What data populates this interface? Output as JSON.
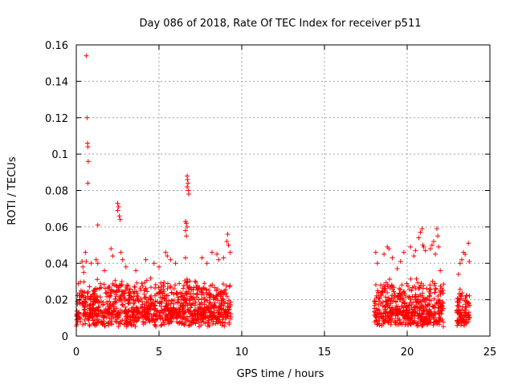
{
  "chart_data": {
    "type": "scatter",
    "title": "Day 086 of 2018, Rate Of TEC Index for receiver p511",
    "xlabel": "GPS time / hours",
    "ylabel": "ROTI / TECUs",
    "xlim": [
      0,
      25
    ],
    "ylim": [
      0,
      0.16
    ],
    "x_ticks": [
      0,
      5,
      10,
      15,
      20,
      25
    ],
    "x_tick_labels": [
      "0",
      "5",
      "10",
      "15",
      "20",
      "25"
    ],
    "y_ticks": [
      0,
      0.02,
      0.04,
      0.06,
      0.08,
      0.1,
      0.12,
      0.14,
      0.16
    ],
    "y_tick_labels": [
      "0",
      "0.02",
      "0.04",
      "0.06",
      "0.08",
      "0.1",
      "0.12",
      "0.14",
      "0.16"
    ],
    "grid": true,
    "marker": "+",
    "color": "#ff0000",
    "series": [
      {
        "name": "ROTI",
        "segments": [
          {
            "x_range": [
              0.0,
              9.35
            ],
            "typical_range": [
              0.005,
              0.03
            ],
            "notes": "dense data block"
          },
          {
            "x_range": [
              18.0,
              22.2
            ],
            "typical_range": [
              0.005,
              0.03
            ],
            "notes": "dense data block"
          },
          {
            "x_range": [
              23.0,
              23.8
            ],
            "typical_range": [
              0.005,
              0.025
            ],
            "notes": "dense data block"
          }
        ],
        "points": [
          [
            0.6,
            0.154
          ],
          [
            0.65,
            0.12
          ],
          [
            0.68,
            0.106
          ],
          [
            0.7,
            0.104
          ],
          [
            0.72,
            0.096
          ],
          [
            0.7,
            0.084
          ],
          [
            1.3,
            0.061
          ],
          [
            0.35,
            0.041
          ],
          [
            0.4,
            0.038
          ],
          [
            0.45,
            0.035
          ],
          [
            0.55,
            0.046
          ],
          [
            0.6,
            0.041
          ],
          [
            0.9,
            0.04
          ],
          [
            1.2,
            0.042
          ],
          [
            1.3,
            0.04
          ],
          [
            1.7,
            0.036
          ],
          [
            2.1,
            0.048
          ],
          [
            2.2,
            0.044
          ],
          [
            2.5,
            0.069
          ],
          [
            2.55,
            0.071
          ],
          [
            2.6,
            0.066
          ],
          [
            2.65,
            0.064
          ],
          [
            2.5,
            0.073
          ],
          [
            2.7,
            0.046
          ],
          [
            2.8,
            0.042
          ],
          [
            3.0,
            0.038
          ],
          [
            3.6,
            0.036
          ],
          [
            4.2,
            0.042
          ],
          [
            4.7,
            0.04
          ],
          [
            5.0,
            0.038
          ],
          [
            5.4,
            0.046
          ],
          [
            5.5,
            0.044
          ],
          [
            5.7,
            0.042
          ],
          [
            6.0,
            0.04
          ],
          [
            6.6,
            0.043
          ],
          [
            6.7,
            0.088
          ],
          [
            6.72,
            0.086
          ],
          [
            6.75,
            0.084
          ],
          [
            6.7,
            0.082
          ],
          [
            6.78,
            0.08
          ],
          [
            6.8,
            0.078
          ],
          [
            6.6,
            0.063
          ],
          [
            6.65,
            0.062
          ],
          [
            6.7,
            0.06
          ],
          [
            6.6,
            0.058
          ],
          [
            6.65,
            0.055
          ],
          [
            7.6,
            0.043
          ],
          [
            7.9,
            0.04
          ],
          [
            8.2,
            0.046
          ],
          [
            8.5,
            0.045
          ],
          [
            8.6,
            0.042
          ],
          [
            8.9,
            0.043
          ],
          [
            9.1,
            0.052
          ],
          [
            9.15,
            0.056
          ],
          [
            9.2,
            0.05
          ],
          [
            9.3,
            0.046
          ],
          [
            18.1,
            0.046
          ],
          [
            18.2,
            0.04
          ],
          [
            18.6,
            0.045
          ],
          [
            18.8,
            0.049
          ],
          [
            18.9,
            0.048
          ],
          [
            19.1,
            0.043
          ],
          [
            19.4,
            0.037
          ],
          [
            19.6,
            0.041
          ],
          [
            19.8,
            0.046
          ],
          [
            20.2,
            0.049
          ],
          [
            20.4,
            0.044
          ],
          [
            20.5,
            0.047
          ],
          [
            20.7,
            0.054
          ],
          [
            20.8,
            0.057
          ],
          [
            20.9,
            0.059
          ],
          [
            20.95,
            0.05
          ],
          [
            21.0,
            0.049
          ],
          [
            21.1,
            0.047
          ],
          [
            21.4,
            0.048
          ],
          [
            21.5,
            0.05
          ],
          [
            21.6,
            0.052
          ],
          [
            21.8,
            0.059
          ],
          [
            21.85,
            0.055
          ],
          [
            21.9,
            0.049
          ],
          [
            21.7,
            0.045
          ],
          [
            22.0,
            0.036
          ],
          [
            23.1,
            0.034
          ],
          [
            23.2,
            0.04
          ],
          [
            23.3,
            0.042
          ],
          [
            23.4,
            0.046
          ],
          [
            23.5,
            0.045
          ],
          [
            23.7,
            0.051
          ],
          [
            23.75,
            0.041
          ]
        ]
      }
    ]
  }
}
